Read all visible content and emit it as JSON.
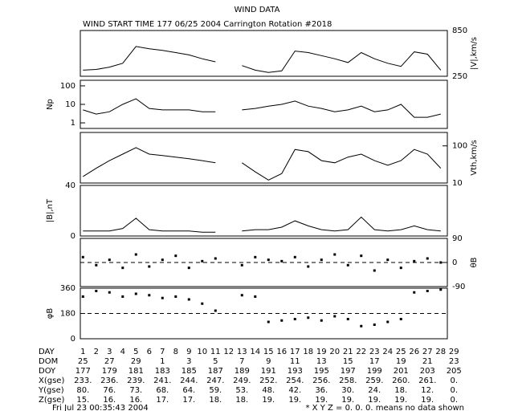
{
  "title": "WIND DATA",
  "subtitle": "WIND START TIME 177 06/25 2004 Carrington Rotation #2018",
  "chart_data": [
    {
      "type": "line",
      "ylabel": "|V|,km/s",
      "axis_side": "right",
      "log": false,
      "color": "#000000",
      "xlim": [
        0.8,
        28.5
      ],
      "ylim": [
        250,
        850
      ],
      "yticks": [
        250,
        850
      ],
      "x": [
        1,
        2,
        3,
        4,
        5,
        6,
        7,
        8,
        9,
        10,
        11,
        12,
        13,
        14,
        15,
        16,
        17,
        18,
        19,
        20,
        21,
        22,
        23,
        24,
        25,
        26,
        27,
        28
      ],
      "values": [
        330,
        340,
        370,
        420,
        640,
        610,
        590,
        560,
        530,
        480,
        440,
        null,
        390,
        330,
        300,
        320,
        580,
        560,
        520,
        480,
        430,
        560,
        480,
        420,
        380,
        570,
        540,
        330
      ]
    },
    {
      "type": "line",
      "ylabel": "Np",
      "axis_side": "left",
      "log": true,
      "color": "#000000",
      "xlim": [
        0.8,
        28.5
      ],
      "ylim": [
        0.5,
        200
      ],
      "yticks": [
        1,
        10,
        100
      ],
      "x": [
        1,
        2,
        3,
        4,
        5,
        6,
        7,
        8,
        9,
        10,
        11,
        12,
        13,
        14,
        15,
        16,
        17,
        18,
        19,
        20,
        21,
        22,
        23,
        24,
        25,
        26,
        27,
        28
      ],
      "values": [
        5,
        3,
        4,
        10,
        20,
        6,
        5,
        5,
        5,
        4,
        4,
        null,
        5,
        6,
        8,
        10,
        15,
        8,
        6,
        4,
        5,
        8,
        4,
        5,
        10,
        2,
        2,
        3
      ]
    },
    {
      "type": "line",
      "ylabel": "Vth,km/s",
      "axis_side": "right",
      "log": true,
      "color": "#000000",
      "xlim": [
        0.8,
        28.5
      ],
      "ylim": [
        10,
        230
      ],
      "yticks": [
        10,
        100
      ],
      "x": [
        1,
        2,
        3,
        4,
        5,
        6,
        7,
        8,
        9,
        10,
        11,
        12,
        13,
        14,
        15,
        16,
        17,
        18,
        19,
        20,
        21,
        22,
        23,
        24,
        25,
        26,
        27,
        28
      ],
      "values": [
        15,
        25,
        40,
        60,
        90,
        60,
        55,
        50,
        45,
        40,
        35,
        null,
        35,
        20,
        12,
        18,
        80,
        70,
        40,
        35,
        50,
        60,
        40,
        30,
        40,
        80,
        60,
        25
      ]
    },
    {
      "type": "line",
      "ylabel": "|B|,nT",
      "axis_side": "left",
      "log": false,
      "color": "#000000",
      "xlim": [
        0.8,
        28.5
      ],
      "ylim": [
        0,
        40
      ],
      "yticks": [
        0,
        40
      ],
      "x": [
        1,
        2,
        3,
        4,
        5,
        6,
        7,
        8,
        9,
        10,
        11,
        12,
        13,
        14,
        15,
        16,
        17,
        18,
        19,
        20,
        21,
        22,
        23,
        24,
        25,
        26,
        27,
        28
      ],
      "values": [
        4,
        4,
        4,
        6,
        14,
        5,
        4,
        4,
        4,
        3,
        3,
        null,
        4,
        5,
        5,
        7,
        12,
        8,
        5,
        4,
        5,
        15,
        5,
        4,
        5,
        8,
        5,
        4
      ]
    },
    {
      "type": "scatter",
      "ylabel": "θB",
      "axis_side": "right",
      "log": false,
      "color": "#000000",
      "reference_line": 0,
      "xlim": [
        0.8,
        28.5
      ],
      "ylim": [
        -90,
        90
      ],
      "yticks": [
        90,
        0,
        -90
      ],
      "x": [
        1,
        2,
        3,
        4,
        5,
        6,
        7,
        8,
        9,
        10,
        11,
        12,
        13,
        14,
        15,
        16,
        17,
        18,
        19,
        20,
        21,
        22,
        23,
        24,
        25,
        26,
        27,
        28
      ],
      "values": [
        20,
        -10,
        10,
        -20,
        30,
        -15,
        10,
        25,
        -20,
        5,
        15,
        null,
        -10,
        20,
        10,
        5,
        20,
        -15,
        10,
        30,
        -10,
        25,
        -30,
        10,
        -20,
        5,
        15,
        0
      ]
    },
    {
      "type": "scatter",
      "ylabel": "φB",
      "axis_side": "left",
      "log": false,
      "color": "#000000",
      "reference_line": 180,
      "xlim": [
        0.8,
        28.5
      ],
      "ylim": [
        0,
        360
      ],
      "yticks": [
        360,
        180,
        0
      ],
      "x": [
        1,
        2,
        3,
        4,
        5,
        6,
        7,
        8,
        9,
        10,
        11,
        12,
        13,
        14,
        15,
        16,
        17,
        18,
        19,
        20,
        21,
        22,
        23,
        24,
        25,
        26,
        27,
        28
      ],
      "values": [
        300,
        340,
        330,
        300,
        320,
        310,
        290,
        300,
        280,
        250,
        200,
        null,
        310,
        300,
        120,
        130,
        140,
        150,
        130,
        160,
        140,
        90,
        100,
        120,
        140,
        330,
        340,
        350
      ]
    }
  ],
  "table": {
    "rows": [
      {
        "label": "DAY",
        "cells": [
          "1",
          "2",
          "3",
          "4",
          "5",
          "6",
          "7",
          "8",
          "9",
          "10",
          "11",
          "12",
          "13",
          "14",
          "15",
          "16",
          "17",
          "18",
          "19",
          "20",
          "21",
          "22",
          "23",
          "24",
          "25",
          "26",
          "27",
          "28",
          "29"
        ]
      },
      {
        "label": "DOM",
        "cells": [
          "25",
          "27",
          "29",
          "1",
          "3",
          "5",
          "7",
          "9",
          "11",
          "13",
          "15",
          "17",
          "19",
          "21",
          "23"
        ]
      },
      {
        "label": "DOY",
        "cells": [
          "177",
          "179",
          "181",
          "183",
          "185",
          "187",
          "189",
          "191",
          "193",
          "195",
          "197",
          "199",
          "201",
          "203",
          "205"
        ]
      },
      {
        "label": "X(gse)",
        "cells": [
          "233.",
          "236.",
          "239.",
          "241.",
          "244.",
          "247.",
          "249.",
          "252.",
          "254.",
          "256.",
          "258.",
          "259.",
          "260.",
          "261.",
          "0."
        ]
      },
      {
        "label": "Y(gse)",
        "cells": [
          "80.",
          "76.",
          "73.",
          "68.",
          "64.",
          "59.",
          "53.",
          "48.",
          "42.",
          "36.",
          "30.",
          "24.",
          "18.",
          "12.",
          "0."
        ]
      },
      {
        "label": "Z(gse)",
        "cells": [
          "15.",
          "16.",
          "16.",
          "17.",
          "17.",
          "18.",
          "18.",
          "19.",
          "19.",
          "19.",
          "19.",
          "19.",
          "19.",
          "19.",
          "0."
        ]
      }
    ]
  },
  "footer": {
    "timestamp": "Fri Jul 23 00:35:43 2004",
    "note": "* X Y Z = 0. 0. 0. means no data shown"
  }
}
